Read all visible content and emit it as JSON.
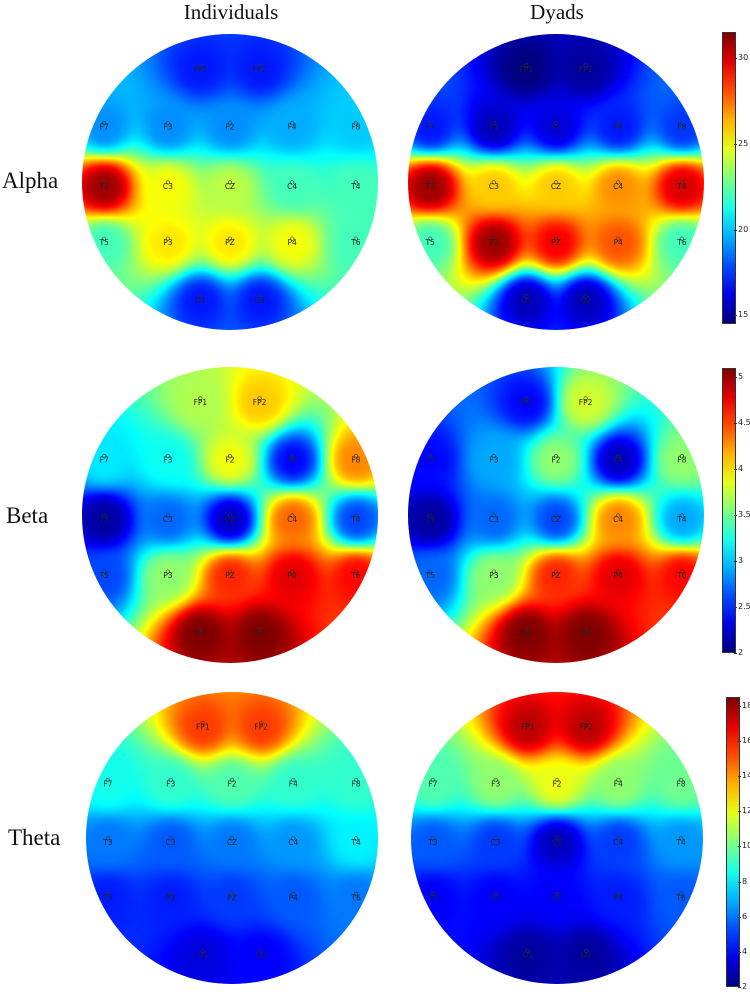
{
  "columns": [
    "Individuals",
    "Dyads"
  ],
  "rows": [
    "Alpha",
    "Beta",
    "Theta"
  ],
  "chart_data": {
    "type": "heatmap",
    "columns": [
      "Individuals",
      "Dyads"
    ],
    "rows": [
      {
        "band": "Alpha",
        "colorbar": {
          "min": 14.5,
          "max": 31.5,
          "ticks": [
            15,
            20,
            25,
            30
          ]
        },
        "maps": [
          {
            "condition": "Individuals",
            "electrodes": [
              {
                "label": "FP1",
                "value": 17
              },
              {
                "label": "FP2",
                "value": 17
              },
              {
                "label": "F7",
                "value": 19
              },
              {
                "label": "F3",
                "value": 19
              },
              {
                "label": "F2",
                "value": 19
              },
              {
                "label": "F4",
                "value": 19.5
              },
              {
                "label": "F8",
                "value": 20
              },
              {
                "label": "T3",
                "value": 31
              },
              {
                "label": "C3",
                "value": 25
              },
              {
                "label": "CZ",
                "value": 24
              },
              {
                "label": "C4",
                "value": 22
              },
              {
                "label": "T4",
                "value": 22
              },
              {
                "label": "T5",
                "value": 22
              },
              {
                "label": "P3",
                "value": 25.5
              },
              {
                "label": "PZ",
                "value": 25.5
              },
              {
                "label": "P4",
                "value": 25
              },
              {
                "label": "T6",
                "value": 22
              },
              {
                "label": "O1",
                "value": 17
              },
              {
                "label": "O2",
                "value": 17
              }
            ]
          },
          {
            "condition": "Dyads",
            "electrodes": [
              {
                "label": "FP1",
                "value": 14.5
              },
              {
                "label": "FP2",
                "value": 15
              },
              {
                "label": "F7",
                "value": 17
              },
              {
                "label": "F3",
                "value": 15.5
              },
              {
                "label": "F2",
                "value": 16
              },
              {
                "label": "F4",
                "value": 17
              },
              {
                "label": "F8",
                "value": 17.5
              },
              {
                "label": "T3",
                "value": 31
              },
              {
                "label": "C3",
                "value": 26
              },
              {
                "label": "CZ",
                "value": 26
              },
              {
                "label": "C4",
                "value": 27
              },
              {
                "label": "T4",
                "value": 30
              },
              {
                "label": "T5",
                "value": 22
              },
              {
                "label": "P3",
                "value": 31
              },
              {
                "label": "PZ",
                "value": 29.5
              },
              {
                "label": "P4",
                "value": 28
              },
              {
                "label": "T6",
                "value": 22
              },
              {
                "label": "O1",
                "value": 15.5
              },
              {
                "label": "O2",
                "value": 15.5
              }
            ]
          }
        ]
      },
      {
        "band": "Beta",
        "colorbar": {
          "min": 2,
          "max": 5.1,
          "ticks": [
            2,
            2.5,
            3,
            3.5,
            4,
            4.5,
            5
          ]
        },
        "maps": [
          {
            "condition": "Individuals",
            "electrodes": [
              {
                "label": "FP1",
                "value": 3.7
              },
              {
                "label": "FP2",
                "value": 4.1
              },
              {
                "label": "F7",
                "value": 3.1
              },
              {
                "label": "F3",
                "value": 3.2
              },
              {
                "label": "F2",
                "value": 3.9
              },
              {
                "label": "F4",
                "value": 2.4
              },
              {
                "label": "F8",
                "value": 4.3
              },
              {
                "label": "T3",
                "value": 2.1
              },
              {
                "label": "C3",
                "value": 2.7
              },
              {
                "label": "CZ",
                "value": 2.2
              },
              {
                "label": "C4",
                "value": 4.4
              },
              {
                "label": "T4",
                "value": 2.6
              },
              {
                "label": "T5",
                "value": 2.6
              },
              {
                "label": "P3",
                "value": 3.6
              },
              {
                "label": "PZ",
                "value": 4.6
              },
              {
                "label": "P4",
                "value": 4.8
              },
              {
                "label": "T6",
                "value": 4.7
              },
              {
                "label": "O1",
                "value": 5.1
              },
              {
                "label": "O2",
                "value": 5.1
              }
            ]
          },
          {
            "condition": "Dyads",
            "electrodes": [
              {
                "label": "FP1",
                "value": 2.4
              },
              {
                "label": "FP2",
                "value": 3.8
              },
              {
                "label": "F7",
                "value": 2.4
              },
              {
                "label": "F3",
                "value": 2.9
              },
              {
                "label": "F2",
                "value": 3.6
              },
              {
                "label": "F4",
                "value": 2.2
              },
              {
                "label": "F8",
                "value": 3.6
              },
              {
                "label": "T3",
                "value": 2.1
              },
              {
                "label": "C3",
                "value": 2.7
              },
              {
                "label": "CZ",
                "value": 2.6
              },
              {
                "label": "C4",
                "value": 4.3
              },
              {
                "label": "T4",
                "value": 2.9
              },
              {
                "label": "T5",
                "value": 2.7
              },
              {
                "label": "P3",
                "value": 3.6
              },
              {
                "label": "PZ",
                "value": 4.6
              },
              {
                "label": "P4",
                "value": 4.8
              },
              {
                "label": "T6",
                "value": 4.7
              },
              {
                "label": "O1",
                "value": 5.1
              },
              {
                "label": "O2",
                "value": 5.1
              }
            ]
          }
        ]
      },
      {
        "band": "Theta",
        "colorbar": {
          "min": 2,
          "max": 18.5,
          "ticks": [
            2,
            4,
            6,
            8,
            10,
            12,
            14,
            16,
            18
          ]
        },
        "maps": [
          {
            "condition": "Individuals",
            "electrodes": [
              {
                "label": "FP1",
                "value": 15.5
              },
              {
                "label": "FP2",
                "value": 15.5
              },
              {
                "label": "F7",
                "value": 8.5
              },
              {
                "label": "F3",
                "value": 9
              },
              {
                "label": "F2",
                "value": 9.5
              },
              {
                "label": "F4",
                "value": 9
              },
              {
                "label": "F8",
                "value": 9
              },
              {
                "label": "T3",
                "value": 6
              },
              {
                "label": "C3",
                "value": 5.5
              },
              {
                "label": "CZ",
                "value": 6
              },
              {
                "label": "C4",
                "value": 6.5
              },
              {
                "label": "T4",
                "value": 8
              },
              {
                "label": "T5",
                "value": 4.5
              },
              {
                "label": "P3",
                "value": 4.5
              },
              {
                "label": "PZ",
                "value": 5
              },
              {
                "label": "P4",
                "value": 5.5
              },
              {
                "label": "T6",
                "value": 6
              },
              {
                "label": "O1",
                "value": 3.5
              },
              {
                "label": "O2",
                "value": 4
              }
            ]
          },
          {
            "condition": "Dyads",
            "electrodes": [
              {
                "label": "FP1",
                "value": 17.5
              },
              {
                "label": "FP2",
                "value": 17.5
              },
              {
                "label": "F7",
                "value": 9.5
              },
              {
                "label": "F3",
                "value": 10.5
              },
              {
                "label": "F2",
                "value": 12
              },
              {
                "label": "F4",
                "value": 10.5
              },
              {
                "label": "F8",
                "value": 10
              },
              {
                "label": "T3",
                "value": 5.5
              },
              {
                "label": "C3",
                "value": 5
              },
              {
                "label": "CZ",
                "value": 3
              },
              {
                "label": "C4",
                "value": 5
              },
              {
                "label": "T4",
                "value": 6.5
              },
              {
                "label": "T5",
                "value": 4
              },
              {
                "label": "P3",
                "value": 4
              },
              {
                "label": "PZ",
                "value": 4
              },
              {
                "label": "P4",
                "value": 4.5
              },
              {
                "label": "T6",
                "value": 5.5
              },
              {
                "label": "O1",
                "value": 2.5
              },
              {
                "label": "O2",
                "value": 2.5
              }
            ]
          }
        ]
      }
    ]
  }
}
